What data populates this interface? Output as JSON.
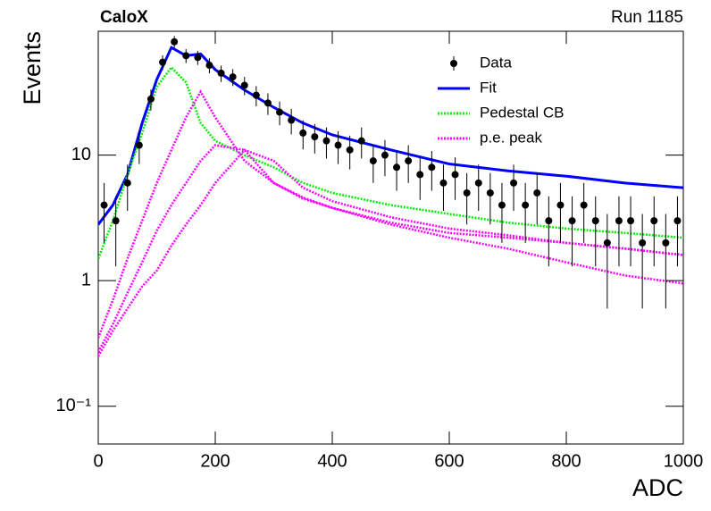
{
  "chart_data": {
    "type": "scatter",
    "title": "CaloX",
    "subtitle": "Run 1185",
    "xlabel": "ADC",
    "ylabel": "Events",
    "ylog": true,
    "xlim": [
      0,
      1000
    ],
    "ylim": [
      0.05,
      97
    ],
    "xticks": [
      0,
      200,
      400,
      600,
      800,
      1000
    ],
    "yticks": [
      {
        "value": 0.1,
        "label": "10⁻¹"
      },
      1,
      10
    ],
    "legend": "top-right",
    "data": {
      "name": "Data",
      "color": "#000000",
      "x": [
        10,
        30,
        50,
        70,
        90,
        110,
        130,
        150,
        170,
        190,
        210,
        230,
        250,
        270,
        290,
        310,
        330,
        350,
        370,
        390,
        410,
        430,
        450,
        470,
        490,
        510,
        530,
        550,
        570,
        590,
        610,
        630,
        650,
        670,
        690,
        710,
        730,
        750,
        770,
        790,
        810,
        830,
        850,
        870,
        890,
        910,
        930,
        950,
        970,
        990
      ],
      "values": [
        4,
        3,
        6,
        12,
        28,
        55,
        80,
        62,
        60,
        52,
        45,
        42,
        36,
        30,
        26,
        22,
        19,
        15,
        14,
        13,
        12,
        11,
        13,
        9,
        10,
        8,
        9,
        7,
        8,
        6,
        7,
        5,
        6,
        5,
        4,
        6,
        4,
        5,
        3,
        4,
        3,
        4,
        3,
        2,
        3,
        3,
        2,
        3,
        2,
        3
      ],
      "errors": [
        2,
        1.7,
        2.4,
        3.5,
        5.3,
        7.4,
        8.9,
        7.9,
        7.7,
        7.2,
        6.7,
        6.5,
        6,
        5.5,
        5.1,
        4.7,
        4.4,
        3.9,
        3.7,
        3.6,
        3.5,
        3.3,
        3.6,
        3,
        3.2,
        2.8,
        3,
        2.6,
        2.8,
        2.4,
        2.6,
        2.2,
        2.4,
        2.2,
        2,
        2.4,
        2,
        2.2,
        1.7,
        2,
        1.7,
        2,
        1.7,
        1.4,
        1.7,
        1.7,
        1.4,
        1.7,
        1.4,
        1.7
      ]
    },
    "series": [
      {
        "name": "Fit",
        "color": "#0000ff",
        "style": "solid",
        "x": [
          0,
          25,
          50,
          75,
          100,
          125,
          150,
          175,
          200,
          250,
          300,
          350,
          400,
          500,
          600,
          700,
          800,
          900,
          1000
        ],
        "lines": [
          [
            2.8,
            4,
            7,
            18,
            40,
            72,
            62,
            64,
            48,
            33,
            24,
            18,
            14.5,
            11,
            8.5,
            7.5,
            6.8,
            6,
            5.5
          ]
        ]
      },
      {
        "name": "Pedestal CB",
        "color": "#00ee00",
        "style": "dotted",
        "x": [
          0,
          25,
          50,
          75,
          100,
          125,
          150,
          175,
          200,
          250,
          300,
          350,
          400,
          500,
          600,
          700,
          800,
          900,
          1000
        ],
        "lines": [
          [
            1.5,
            3,
            7,
            15,
            35,
            50,
            38,
            18,
            13,
            10,
            8,
            6,
            5,
            4,
            3.4,
            2.9,
            2.6,
            2.4,
            2.2
          ]
        ]
      },
      {
        "name": "p.e. peak",
        "color": "#ff00ff",
        "style": "dotted",
        "x": [
          0,
          25,
          50,
          75,
          100,
          125,
          150,
          175,
          200,
          250,
          300,
          350,
          400,
          500,
          600,
          700,
          800,
          900,
          1000
        ],
        "lines": [
          [
            0.35,
            0.7,
            1.5,
            3,
            6,
            11,
            20,
            32,
            20,
            9,
            6,
            4.6,
            3.8,
            2.8,
            2.2,
            1.8,
            1.4,
            1.1,
            0.95
          ],
          [
            0.27,
            0.45,
            0.8,
            1.4,
            2.5,
            4,
            6,
            9,
            12,
            11,
            6,
            4.5,
            3.8,
            2.9,
            2.4,
            2.2,
            2,
            1.8,
            1.6
          ],
          [
            0.25,
            0.4,
            0.6,
            0.9,
            1.2,
            1.9,
            2.8,
            4,
            6,
            11,
            9,
            5.5,
            4.3,
            3.2,
            2.6,
            2.3,
            2,
            1.8,
            1.6
          ]
        ]
      }
    ]
  }
}
